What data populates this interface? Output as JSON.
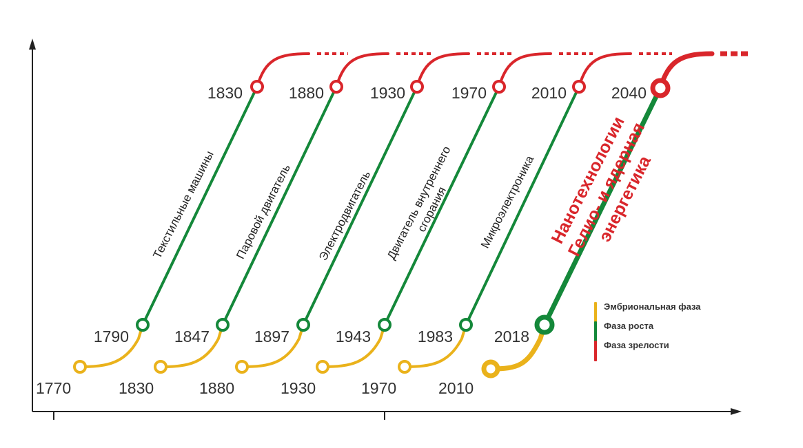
{
  "colors": {
    "embryonic": "#eab21b",
    "growth": "#14883a",
    "maturity": "#d9262b",
    "axis": "#222222",
    "year_text": "#333333",
    "tech_text": "#222222",
    "highlight_text": "#d9262b"
  },
  "waves": [
    {
      "tech": "Текстильные машины",
      "start_year": "1770",
      "growth_start": "1790",
      "maturity_start": "1830"
    },
    {
      "tech": "Паровой двигатель",
      "start_year": "1830",
      "growth_start": "1847",
      "maturity_start": "1880"
    },
    {
      "tech": "Электродвигатель",
      "start_year": "1880",
      "growth_start": "1897",
      "maturity_start": "1930"
    },
    {
      "tech": "Двигатель внутреннего сгорания",
      "start_year": "1930",
      "growth_start": "1943",
      "maturity_start": "1970"
    },
    {
      "tech": "Микроэлектроника",
      "start_year": "1970",
      "growth_start": "1983",
      "maturity_start": "2010"
    },
    {
      "tech": "Нанотехнологии Гелио- и ядерная энергетика",
      "start_year": "2010",
      "growth_start": "2018",
      "maturity_start": "2040",
      "highlight": true
    }
  ],
  "legend": [
    {
      "label": "Эмбриональная фаза",
      "color": "#eab21b"
    },
    {
      "label": "Фаза роста",
      "color": "#14883a"
    },
    {
      "label": "Фаза зрелости",
      "color": "#d9262b"
    }
  ]
}
